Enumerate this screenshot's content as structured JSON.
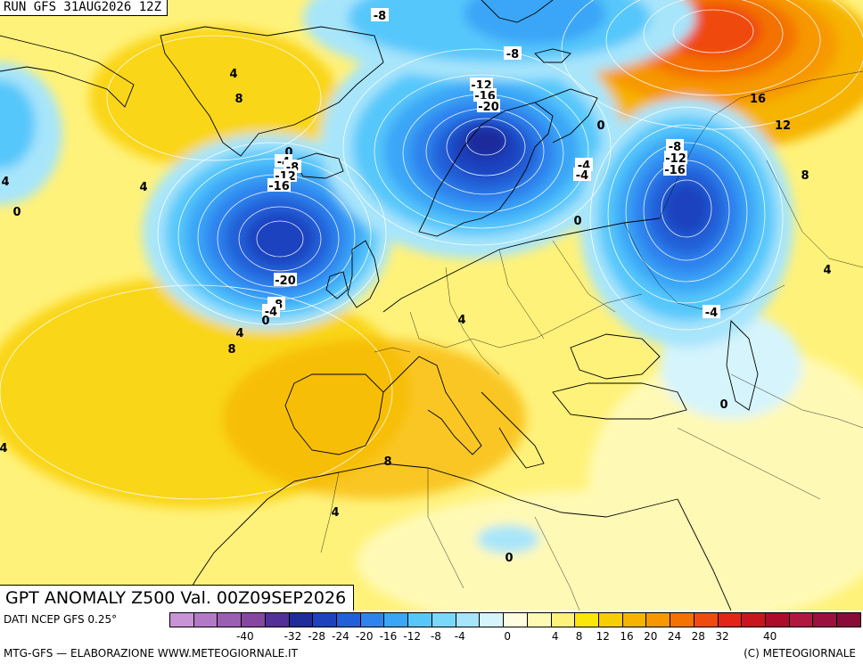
{
  "header": {
    "run_label": "RUN GFS 31AUG2026 12Z"
  },
  "map": {
    "title": "GPT ANOMALY Z500 Val. 00Z09SEP2026",
    "palette": {
      "-44": "#c994d6",
      "-40": "#b27ac4",
      "-36": "#9b5fb2",
      "-32": "#85479f",
      "-28": "#52309a",
      "-24": "#1e2c9c",
      "-20": "#1f43bf",
      "-16": "#2160d8",
      "-12": "#2f83ee",
      "-8": "#3aa6f7",
      "-4": "#57c7fb",
      "0": "#a7e5fb",
      "4": "#fff9b6",
      "8": "#fff27a",
      "12": "#fbe60a",
      "16": "#f7ce00",
      "20": "#f6b400",
      "24": "#f79800",
      "28": "#f47200",
      "32": "#ef4a0f",
      "36": "#e22517",
      "40": "#c8161f",
      "44": "#ac0d2b"
    },
    "pressure_centers": [
      {
        "name": "atlantic-low",
        "anomaly": -24
      },
      {
        "name": "scandinavia-low",
        "anomaly": -28
      },
      {
        "name": "russia-low",
        "anomaly": -24
      },
      {
        "name": "arctic-low",
        "anomaly": -12
      },
      {
        "name": "siberia-high",
        "anomaly": 28
      },
      {
        "name": "libya-low",
        "anomaly": 0
      }
    ],
    "contour_labels": [
      {
        "value": "-8"
      },
      {
        "value": "-8"
      },
      {
        "value": "4"
      },
      {
        "value": "8"
      },
      {
        "value": "-12"
      },
      {
        "value": "-16"
      },
      {
        "value": "-20"
      },
      {
        "value": "16"
      },
      {
        "value": "12"
      },
      {
        "value": "0"
      },
      {
        "value": "0"
      },
      {
        "value": "-4"
      },
      {
        "value": "-8"
      },
      {
        "value": "-12"
      },
      {
        "value": "-16"
      },
      {
        "value": "-8"
      },
      {
        "value": "-12"
      },
      {
        "value": "-16"
      },
      {
        "value": "-4"
      },
      {
        "value": "-4"
      },
      {
        "value": "8"
      },
      {
        "value": "4"
      },
      {
        "value": "4"
      },
      {
        "value": "0"
      },
      {
        "value": "0"
      },
      {
        "value": "-20"
      },
      {
        "value": "-8"
      },
      {
        "value": "-4"
      },
      {
        "value": "0"
      },
      {
        "value": "4"
      },
      {
        "value": "8"
      },
      {
        "value": "4"
      },
      {
        "value": "4"
      },
      {
        "value": "-4"
      },
      {
        "value": "0"
      },
      {
        "value": "8"
      },
      {
        "value": "4"
      },
      {
        "value": "4"
      },
      {
        "value": "0"
      }
    ]
  },
  "legend": {
    "source_label": "DATI NCEP GFS 0.25°",
    "colors": [
      "#c994d6",
      "#b27ac4",
      "#9b5fb2",
      "#85479f",
      "#52309a",
      "#1e2c9c",
      "#1f43bf",
      "#2160d8",
      "#2f83ee",
      "#3aa6f7",
      "#57c7fb",
      "#7ad9fb",
      "#a7e5fb",
      "#d6f4fc",
      "#fffde0",
      "#fff9b6",
      "#fff27a",
      "#fbe60a",
      "#f7ce00",
      "#f6b400",
      "#f79800",
      "#f47200",
      "#ef4a0f",
      "#e22517",
      "#c8161f",
      "#ac0d2b",
      "#b01842",
      "#9c1040",
      "#8a0a3a"
    ],
    "ticks": [
      "-40",
      "-32",
      "-28",
      "-24",
      "-20",
      "-16",
      "-12",
      "-8",
      "-4",
      "0",
      "4",
      "8",
      "12",
      "16",
      "20",
      "24",
      "28",
      "32",
      "40"
    ]
  },
  "footer": {
    "credit_left": "MTG-GFS — ELABORAZIONE WWW.METEOGIORNALE.IT",
    "credit_right": "(C) METEOGIORNALE"
  }
}
